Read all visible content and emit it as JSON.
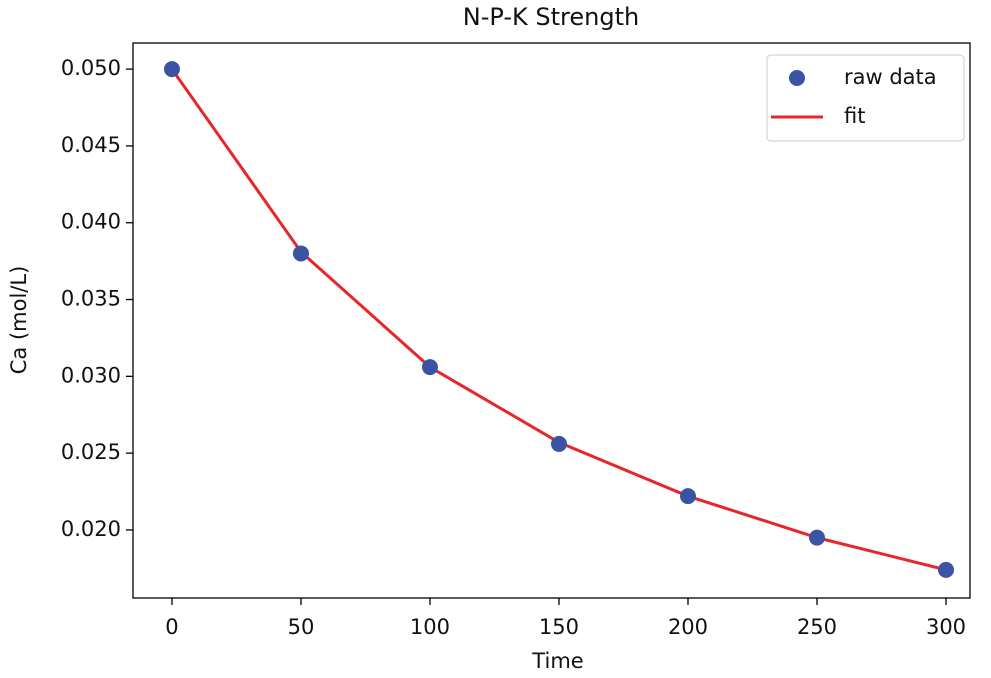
{
  "chart_data": {
    "type": "scatter",
    "title": "N-P-K Strength",
    "x_label": "Time",
    "y_label": "Ca (mol/L)",
    "x": [
      0,
      50,
      100,
      150,
      200,
      250,
      300
    ],
    "series": [
      {
        "name": "raw data",
        "mode": "markers",
        "color": "#3a53a4",
        "values": [
          0.05,
          0.038,
          0.0306,
          0.0256,
          0.0222,
          0.0195,
          0.0174
        ]
      },
      {
        "name": "fit",
        "mode": "line",
        "color": "#e8262a",
        "values": [
          0.05,
          0.0381,
          0.0306,
          0.0257,
          0.0222,
          0.0195,
          0.0174
        ]
      }
    ],
    "xlim": [
      -15.1,
      309.3
    ],
    "ylim": [
      0.01557,
      0.0517
    ],
    "xticks": [
      0,
      50,
      100,
      150,
      200,
      250,
      300
    ],
    "yticks": [
      {
        "value": 0.02,
        "label": "0.020"
      },
      0.025,
      {
        "value": 0.03,
        "label": "0.030"
      },
      0.035,
      {
        "value": 0.04,
        "label": "0.040"
      },
      0.045,
      {
        "value": 0.05,
        "label": "0.050"
      }
    ],
    "legend": "upper right",
    "grid": false
  }
}
